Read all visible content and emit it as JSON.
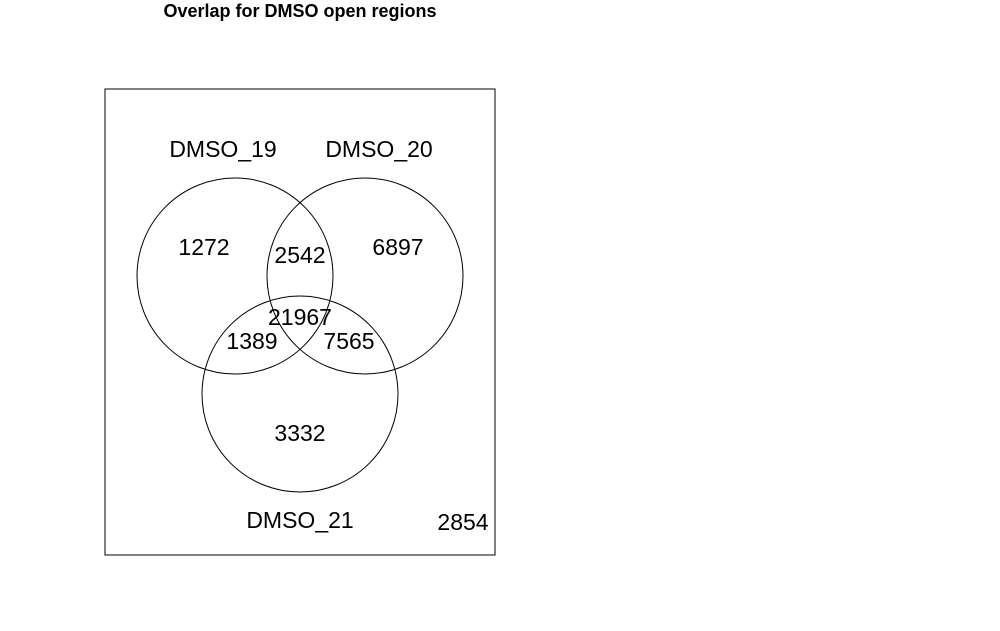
{
  "chart_data": {
    "type": "venn",
    "title": "Overlap for DMSO open regions",
    "sets": [
      "DMSO_19",
      "DMSO_20",
      "DMSO_21"
    ],
    "regions": [
      {
        "sets": [
          "DMSO_19"
        ],
        "count": 1272
      },
      {
        "sets": [
          "DMSO_20"
        ],
        "count": 6897
      },
      {
        "sets": [
          "DMSO_21"
        ],
        "count": 3332
      },
      {
        "sets": [
          "DMSO_19",
          "DMSO_20"
        ],
        "count": 2542
      },
      {
        "sets": [
          "DMSO_19",
          "DMSO_21"
        ],
        "count": 1389
      },
      {
        "sets": [
          "DMSO_20",
          "DMSO_21"
        ],
        "count": 7565
      },
      {
        "sets": [
          "DMSO_19",
          "DMSO_20",
          "DMSO_21"
        ],
        "count": 21967
      },
      {
        "sets": [],
        "count": 2854
      }
    ],
    "outline_color": "#000000",
    "background": "#ffffff"
  }
}
